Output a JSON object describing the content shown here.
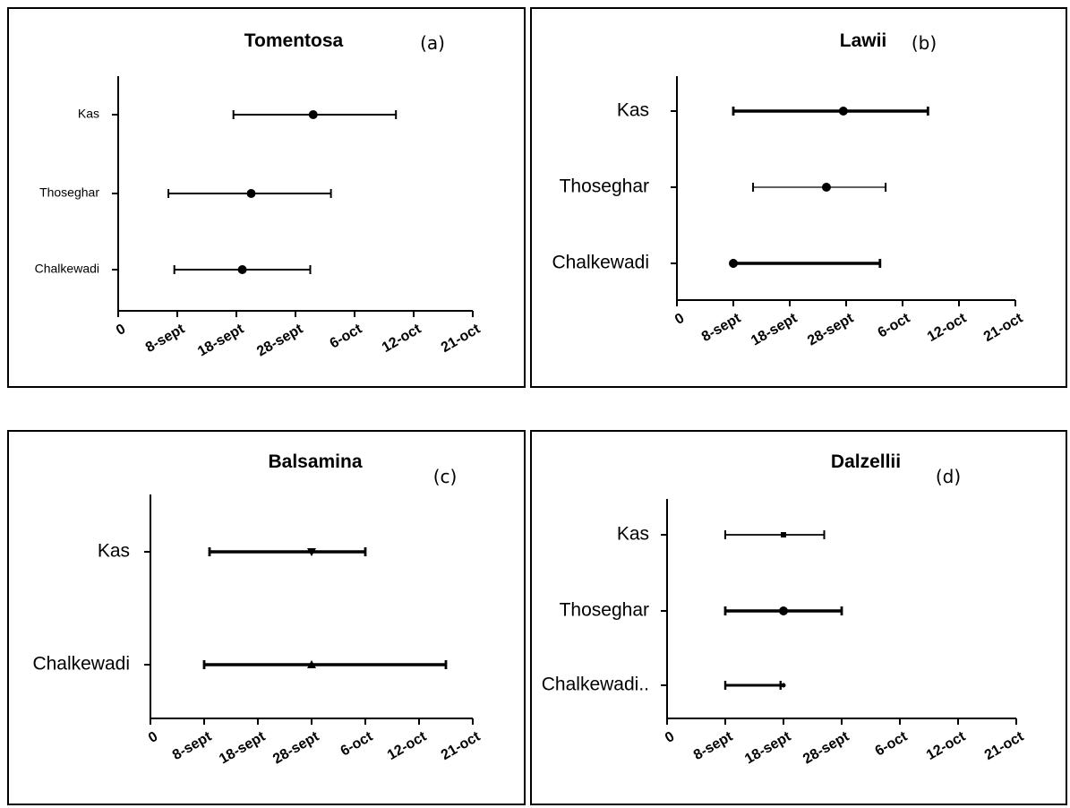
{
  "chart_data": [
    {
      "type": "scatter",
      "subtype": "range-with-marker",
      "title": "Tomentosa",
      "panel_label": "(a)",
      "x_ticks": [
        "0",
        "8-sept",
        "18-sept",
        "28-sept",
        "6-oct",
        "12-oct",
        "21-oct"
      ],
      "categories": [
        "Kas",
        "Thoseghar",
        "Chalkewadi"
      ],
      "marker": "circle",
      "points": [
        {
          "site": "Kas",
          "start": 1.95,
          "end": 4.7,
          "marker": 3.3,
          "lw": 2
        },
        {
          "site": "Thoseghar",
          "start": 0.85,
          "end": 3.6,
          "marker": 2.25,
          "lw": 2
        },
        {
          "site": "Chalkewadi",
          "start": 0.95,
          "end": 3.25,
          "marker": 2.1,
          "lw": 2
        }
      ]
    },
    {
      "type": "scatter",
      "subtype": "range-with-marker",
      "title": "Lawii",
      "panel_label": "(b)",
      "x_ticks": [
        "0",
        "8-sept",
        "18-sept",
        "28-sept",
        "6-oct",
        "12-oct",
        "21-oct"
      ],
      "categories": [
        "Kas",
        "Thoseghar",
        "Chalkewadi"
      ],
      "marker": "circle",
      "points": [
        {
          "site": "Kas",
          "start": 1.0,
          "end": 4.45,
          "marker": 2.95,
          "lw": 3.5
        },
        {
          "site": "Thoseghar",
          "start": 1.35,
          "end": 3.7,
          "marker": 2.65,
          "lw": 1.3
        },
        {
          "site": "Chalkewadi",
          "start": 1.0,
          "end": 3.6,
          "marker": 1.0,
          "lw": 3.5
        }
      ]
    },
    {
      "type": "scatter",
      "subtype": "range-with-marker",
      "title": "Balsamina",
      "panel_label": "(c)",
      "x_ticks": [
        "0",
        "8-sept",
        "18-sept",
        "28-sept",
        "6-oct",
        "12-oct",
        "21-oct"
      ],
      "categories": [
        "Kas",
        "Chalkewadi"
      ],
      "points": [
        {
          "site": "Kas",
          "start": 1.1,
          "end": 4.0,
          "marker": 3.0,
          "shape": "triangle-down",
          "lw": 3.5
        },
        {
          "site": "Chalkewadi",
          "start": 1.0,
          "end": 5.5,
          "marker": 3.0,
          "shape": "triangle-up",
          "lw": 3.5
        }
      ]
    },
    {
      "type": "scatter",
      "subtype": "range-with-marker",
      "title": "Dalzellii",
      "panel_label": "(d)",
      "x_ticks": [
        "0",
        "8-sept",
        "18-sept",
        "28-sept",
        "6-oct",
        "12-oct",
        "21-oct"
      ],
      "categories": [
        "Kas",
        "Thoseghar",
        "Chalkewadi.."
      ],
      "points": [
        {
          "site": "Kas",
          "start": 1.0,
          "end": 2.7,
          "marker": 2.0,
          "shape": "square",
          "lw": 1.8
        },
        {
          "site": "Thoseghar",
          "start": 1.0,
          "end": 3.0,
          "marker": 2.0,
          "shape": "circle",
          "lw": 3.5
        },
        {
          "site": "Chalkewadi",
          "start": 1.0,
          "end": 1.95,
          "marker": 2.0,
          "shape": "small",
          "lw": 3.0
        }
      ]
    }
  ]
}
